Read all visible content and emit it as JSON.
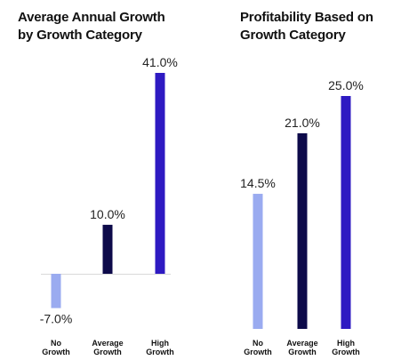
{
  "chart_data": [
    {
      "type": "bar",
      "title_line1": "Average Annual Growth",
      "title_line2": "by Growth Category",
      "categories": [
        [
          "No",
          "Growth"
        ],
        [
          "Average",
          "Growth"
        ],
        [
          "High",
          "Growth"
        ]
      ],
      "values": [
        -7.0,
        10.0,
        41.0
      ],
      "value_labels": [
        "-7.0%",
        "10.0%",
        "41.0%"
      ],
      "colors": [
        "#9aabf0",
        "#0d0a4a",
        "#2e1ac2"
      ],
      "ylim": [
        -7,
        41
      ],
      "baseline_shown": true
    },
    {
      "type": "bar",
      "title_line1": "Profitability Based on",
      "title_line2": "Growth Category",
      "categories": [
        [
          "No",
          "Growth"
        ],
        [
          "Average",
          "Growth"
        ],
        [
          "High",
          "Growth"
        ]
      ],
      "values": [
        14.5,
        21.0,
        25.0
      ],
      "value_labels": [
        "14.5%",
        "21.0%",
        "25.0%"
      ],
      "colors": [
        "#9aabf0",
        "#0d0a4a",
        "#2e1ac2"
      ],
      "ylim": [
        0,
        25
      ],
      "baseline_shown": false
    }
  ]
}
